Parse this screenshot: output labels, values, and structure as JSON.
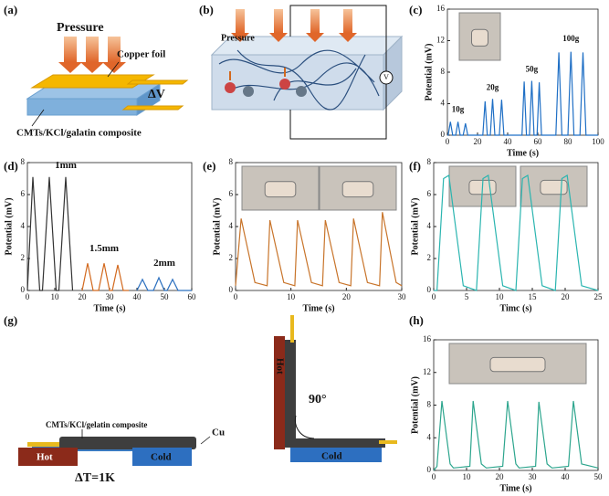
{
  "panel_labels": [
    "(a)",
    "(b)",
    "(c)",
    "(d)",
    "(e)",
    "(f)",
    "(g)",
    "(h)"
  ],
  "panel_a": {
    "pressure": "Pressure",
    "foil": "Copper foil",
    "voltage": "ΔV",
    "composite": "CMTs/KCl/galatin composite"
  },
  "panel_b": {
    "pressure": "Pressure",
    "meter": "V"
  },
  "panel_g": {
    "composite": "CMTs/KCl/gelatin composite",
    "electrode": "Cu",
    "hot": "Hot",
    "cold": "Cold",
    "delta_t": "ΔT=1K",
    "angle": "90°",
    "hot_bent": "Hot",
    "cold_bent": "Cold"
  },
  "chart_data": [
    {
      "type": "line",
      "xlabel": "Time (s)",
      "ylabel": "Potential (mV)",
      "xlim": [
        0,
        100
      ],
      "ylim": [
        0,
        16
      ],
      "xticks": [
        0,
        20,
        40,
        60,
        80,
        100
      ],
      "yticks": [
        0,
        4,
        8,
        12,
        16
      ],
      "annotations": [
        "10g",
        "20g",
        "50g",
        "100g"
      ],
      "series": [
        {
          "color": "#1f6fc5",
          "x": [
            0,
            0.5,
            2,
            3.5,
            5.5,
            7,
            8.5,
            10.5,
            12,
            13.5,
            23.5,
            25,
            26.5,
            28.5,
            30,
            31.5,
            34.5,
            36,
            37.5,
            49.5,
            51,
            52.5,
            54.5,
            56,
            57.5,
            59.5,
            61,
            62.5,
            72,
            74,
            76,
            80,
            82,
            84,
            88,
            90,
            92,
            100
          ],
          "values": [
            0,
            0,
            1.7,
            0,
            0,
            1.7,
            0,
            0,
            1.5,
            0,
            0,
            4.3,
            0,
            0,
            4.6,
            0,
            0,
            4.5,
            0,
            0,
            6.8,
            0,
            0,
            6.9,
            0,
            0,
            6.7,
            0,
            0,
            10.5,
            0,
            0,
            10.6,
            0,
            0,
            10.5,
            0,
            0
          ]
        }
      ]
    },
    {
      "type": "line",
      "xlabel": "Time (s)",
      "ylabel": "Potential (mV)",
      "xlim": [
        0,
        60
      ],
      "ylim": [
        0,
        8
      ],
      "xticks": [
        0,
        10,
        20,
        30,
        40,
        50,
        60
      ],
      "yticks": [
        0,
        2,
        4,
        6,
        8
      ],
      "series": [
        {
          "name": "1mm",
          "color": "#333333",
          "x": [
            0,
            2,
            4.5,
            5.5,
            8,
            10.5,
            11.5,
            14,
            16.5
          ],
          "values": [
            0,
            7.1,
            0,
            0,
            7.1,
            0,
            0,
            7.1,
            0
          ]
        },
        {
          "name": "1.5mm",
          "color": "#d2691e",
          "x": [
            20,
            22,
            24,
            26,
            28,
            30,
            31,
            33,
            35,
            37
          ],
          "values": [
            0,
            1.7,
            0,
            0,
            1.7,
            0,
            0,
            1.6,
            0,
            0
          ]
        },
        {
          "name": "2mm",
          "color": "#2a6fbf",
          "x": [
            40,
            42,
            44,
            46,
            48,
            50,
            51,
            53,
            55,
            60
          ],
          "values": [
            0,
            0.7,
            0,
            0,
            0.8,
            0,
            0,
            0.7,
            0,
            0
          ]
        }
      ]
    },
    {
      "type": "line",
      "xlabel": "Time (s)",
      "ylabel": "Potential (mV)",
      "xlim": [
        0,
        30
      ],
      "ylim": [
        0,
        8
      ],
      "xticks": [
        0,
        10,
        20,
        30
      ],
      "yticks": [
        0,
        2,
        4,
        6,
        8
      ],
      "series": [
        {
          "color": "#c8742a",
          "x": [
            0,
            1,
            3.5,
            5.7,
            6.2,
            8.7,
            10.7,
            11.2,
            13.7,
            15.7,
            16.2,
            18.7,
            20.8,
            21.3,
            23.8,
            26,
            26.5,
            29,
            30
          ],
          "values": [
            0.3,
            4.5,
            0.5,
            0.3,
            4.4,
            0.5,
            0.3,
            4.4,
            0.5,
            0.3,
            4.4,
            0.5,
            0.3,
            4.5,
            0.5,
            0.3,
            4.9,
            0.5,
            0.3
          ]
        }
      ]
    },
    {
      "type": "line",
      "xlabel": "Timc (s)",
      "ylabel": "Potential (mV)",
      "xlim": [
        0,
        25
      ],
      "ylim": [
        0,
        8
      ],
      "xticks": [
        0,
        5,
        10,
        15,
        20,
        25
      ],
      "yticks": [
        0,
        2,
        4,
        6,
        8
      ],
      "series": [
        {
          "color": "#2bb5b0",
          "x": [
            0,
            0.5,
            1.5,
            2.3,
            4.5,
            6.5,
            7.5,
            8.3,
            10.5,
            12.5,
            13.5,
            14.3,
            16.5,
            18.5,
            19.5,
            20.3,
            22.5,
            25
          ],
          "values": [
            0,
            0,
            7,
            7.2,
            0.3,
            0,
            7,
            7.2,
            0.3,
            0,
            7,
            7.2,
            0.3,
            0,
            7,
            7.2,
            0.3,
            0
          ]
        }
      ]
    },
    {
      "type": "line",
      "xlabel": "Time (s)",
      "ylabel": "Potential (mV)",
      "xlim": [
        0,
        50
      ],
      "ylim": [
        0,
        16
      ],
      "xticks": [
        0,
        10,
        20,
        30,
        40,
        50
      ],
      "yticks": [
        0,
        4,
        8,
        12,
        16
      ],
      "series": [
        {
          "color": "#2ca58d",
          "x": [
            0,
            1,
            2.5,
            5,
            6,
            11,
            12,
            14.5,
            16,
            21,
            22.5,
            25,
            26,
            31,
            32,
            34.5,
            36,
            41,
            42.5,
            45,
            50
          ],
          "values": [
            0,
            0.5,
            8.5,
            0.8,
            0.3,
            0.5,
            8.5,
            0.8,
            0.3,
            0.5,
            8.5,
            0.8,
            0.3,
            0.5,
            8.4,
            0.8,
            0.3,
            0.5,
            8.5,
            0.8,
            0.3
          ]
        }
      ]
    }
  ]
}
